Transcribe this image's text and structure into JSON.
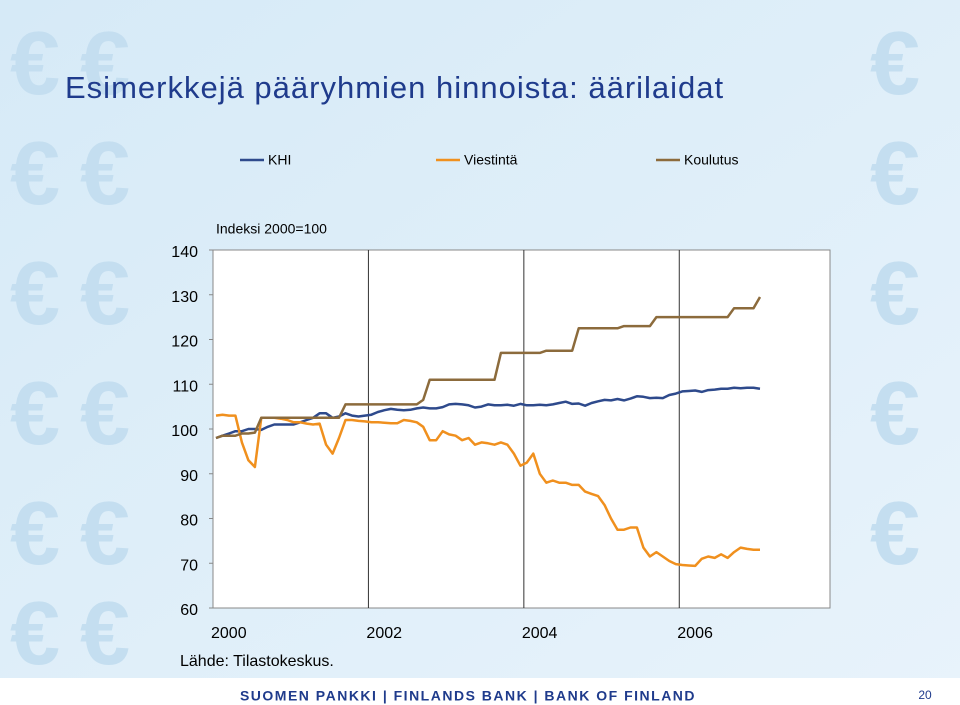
{
  "chart_data": {
    "type": "line",
    "title": "Esimerkkejä pääryhmien hinnoista: äärilaidat",
    "y_label": "Indeksi 2000=100",
    "source": "Lähde: Tilastokeskus.",
    "categories": [
      "2000",
      null,
      null,
      null,
      null,
      null,
      null,
      null,
      null,
      null,
      null,
      null,
      null,
      null,
      null,
      null,
      null,
      null,
      null,
      null,
      null,
      null,
      null,
      null,
      "2002",
      null,
      null,
      null,
      null,
      null,
      null,
      null,
      null,
      null,
      null,
      null,
      null,
      null,
      null,
      null,
      null,
      null,
      null,
      null,
      null,
      null,
      null,
      null,
      "2004",
      null,
      null,
      null,
      null,
      null,
      null,
      null,
      null,
      null,
      null,
      null,
      null,
      null,
      null,
      null,
      null,
      null,
      null,
      null,
      null,
      null,
      null,
      null,
      "2006",
      null,
      null,
      null,
      null,
      null,
      null,
      null,
      null,
      null,
      null,
      null,
      null
    ],
    "series": [
      {
        "name": "KHI",
        "color": "#2e4a8c",
        "values": [
          98,
          98.5,
          99,
          99.5,
          99.5,
          100,
          100,
          99.8,
          100.5,
          101,
          101,
          101,
          101,
          101.5,
          102,
          102.5,
          103.5,
          103.5,
          102.5,
          102.8,
          103.5,
          103,
          102.8,
          103,
          103.2,
          103.8,
          104.2,
          104.5,
          104.3,
          104.2,
          104.3,
          104.6,
          104.8,
          104.6,
          104.6,
          104.9,
          105.5,
          105.6,
          105.5,
          105.3,
          104.8,
          105,
          105.5,
          105.3,
          105.3,
          105.4,
          105.2,
          105.6,
          105.3,
          105.3,
          105.4,
          105.3,
          105.5,
          105.8,
          106.1,
          105.6,
          105.7,
          105.2,
          105.8,
          106.2,
          106.5,
          106.4,
          106.7,
          106.4,
          106.8,
          107.3,
          107.2,
          106.9,
          107.0,
          106.9,
          107.6,
          107.9,
          108.4,
          108.5,
          108.6,
          108.3,
          108.7,
          108.8,
          109,
          109,
          109.2,
          109.1,
          109.2,
          109.2,
          109.0
        ]
      },
      {
        "name": "Viestintä",
        "color": "#f0901e",
        "values": [
          103,
          103.2,
          103,
          103,
          97,
          93,
          91.5,
          102.5,
          102.5,
          102.5,
          102.3,
          102,
          101.5,
          101.5,
          101.2,
          101,
          101.2,
          96.5,
          94.5,
          98,
          102,
          102,
          101.8,
          101.7,
          101.5,
          101.5,
          101.4,
          101.3,
          101.3,
          102,
          101.8,
          101.5,
          100.5,
          97.5,
          97.5,
          99.5,
          98.8,
          98.5,
          97.5,
          98,
          96.5,
          97,
          96.8,
          96.5,
          97,
          96.5,
          94.5,
          91.8,
          92.5,
          94.5,
          90,
          88,
          88.5,
          88,
          88,
          87.5,
          87.5,
          86,
          85.5,
          85,
          83,
          80,
          77.5,
          77.5,
          78,
          78,
          73.5,
          71.5,
          72.5,
          71.5,
          70.5,
          69.8,
          69.6,
          69.5,
          69.4,
          71,
          71.5,
          71.2,
          72,
          71.2,
          72.5,
          73.5,
          73.2,
          73,
          73
        ]
      },
      {
        "name": "Koulutus",
        "color": "#8c6b3c",
        "values": [
          98,
          98.5,
          98.5,
          98.5,
          99,
          99,
          99.2,
          102.5,
          102.5,
          102.5,
          102.5,
          102.5,
          102.5,
          102.5,
          102.5,
          102.5,
          102.5,
          102.5,
          102.5,
          102.5,
          105.5,
          105.5,
          105.5,
          105.5,
          105.5,
          105.5,
          105.5,
          105.5,
          105.5,
          105.5,
          105.5,
          105.5,
          106.5,
          111,
          111,
          111,
          111,
          111,
          111,
          111,
          111,
          111,
          111,
          111,
          117,
          117,
          117,
          117,
          117,
          117,
          117,
          117.5,
          117.5,
          117.5,
          117.5,
          117.5,
          122.5,
          122.5,
          122.5,
          122.5,
          122.5,
          122.5,
          122.5,
          123,
          123,
          123,
          123,
          123,
          125,
          125,
          125,
          125,
          125,
          125,
          125,
          125,
          125,
          125,
          125,
          125,
          127,
          127,
          127,
          127,
          129.5
        ]
      }
    ],
    "ylim": [
      60,
      140
    ],
    "yticks": [
      60,
      70,
      80,
      90,
      100,
      110,
      120,
      130,
      140
    ]
  },
  "footer": {
    "text": "SUOMEN PANKKI | FINLANDS BANK | BANK OF FINLAND",
    "page": "20"
  }
}
